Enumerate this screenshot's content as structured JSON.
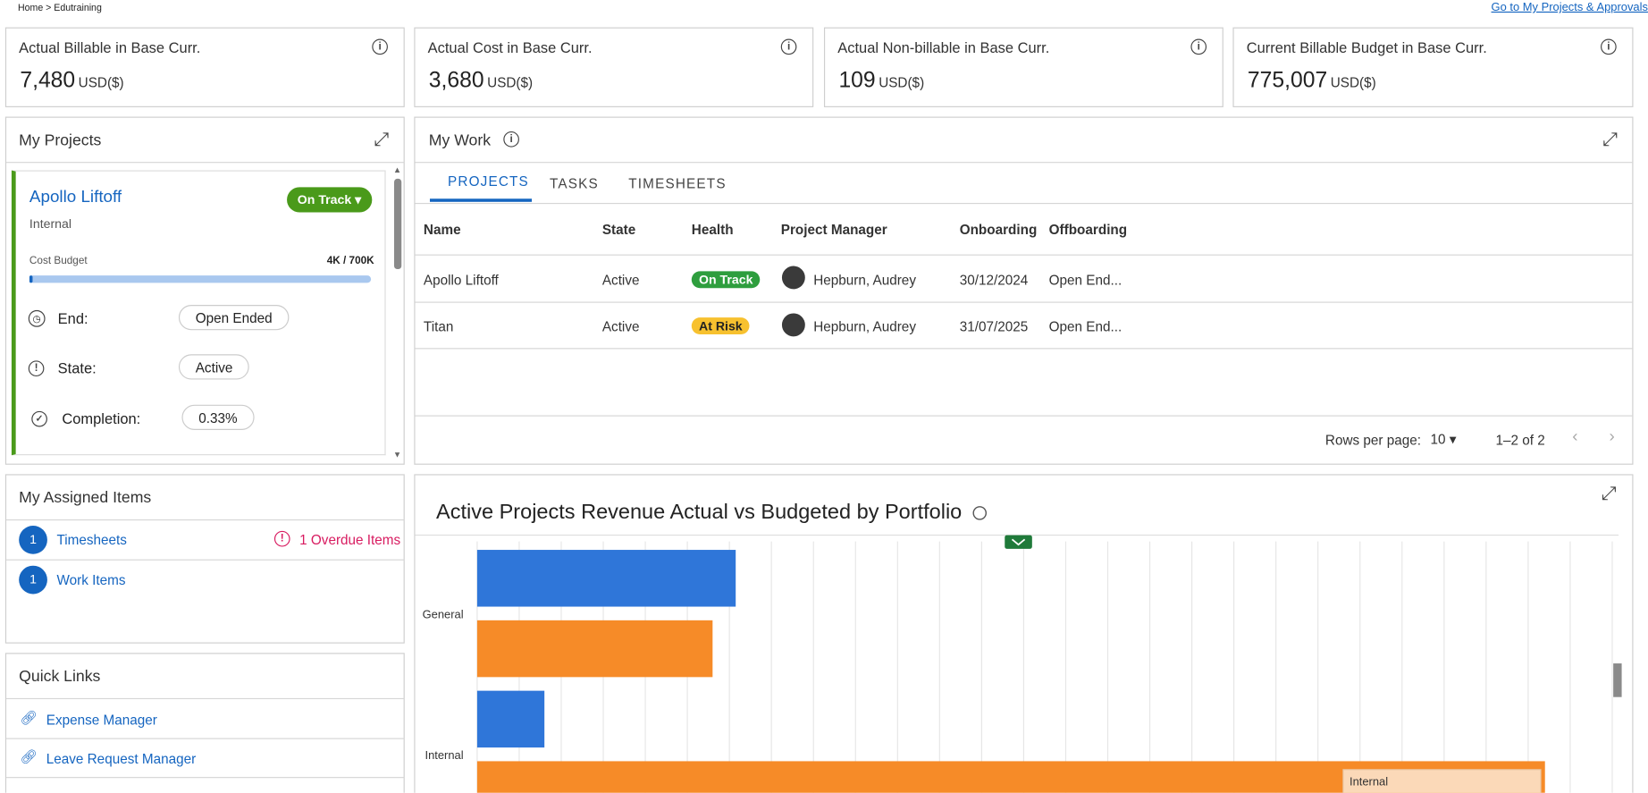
{
  "breadcrumb": "Home >  Edutraining",
  "header_link": "Go to My Projects & Approvals",
  "kpis": [
    {
      "title": "Actual Billable in Base Curr.",
      "value": "7,480",
      "unit": "USD($)"
    },
    {
      "title": "Actual Cost in Base Curr.",
      "value": "3,680",
      "unit": "USD($)"
    },
    {
      "title": "Actual Non-billable in Base Curr.",
      "value": "109",
      "unit": "USD($)"
    },
    {
      "title": "Current Billable Budget in Base Curr.",
      "value": "775,007",
      "unit": "USD($)"
    }
  ],
  "my_projects": {
    "title": "My Projects",
    "card": {
      "name": "Apollo Liftoff",
      "status": "On Track",
      "type": "Internal",
      "budget_label": "Cost Budget",
      "budget_value": "4K / 700K",
      "end_label": "End:",
      "end_value": "Open Ended",
      "state_label": "State:",
      "state_value": "Active",
      "completion_label": "Completion:",
      "completion_value": "0.33%"
    }
  },
  "my_work": {
    "title": "My Work",
    "tabs": [
      "PROJECTS",
      "TASKS",
      "TIMESHEETS"
    ],
    "columns": [
      "Name",
      "State",
      "Health",
      "Project Manager",
      "Onboarding",
      "Offboarding"
    ],
    "rows": [
      [
        "Apollo Liftoff",
        "Active",
        "On Track",
        "Hepburn, Audrey",
        "30/12/2024",
        "Open End..."
      ],
      [
        "Titan",
        "Active",
        "At Risk",
        "Hepburn, Audrey",
        "31/07/2025",
        "Open End..."
      ]
    ],
    "rows_per_page_label": "Rows per page:",
    "rows_per_page": "10",
    "range": "1–2 of 2"
  },
  "assigned": {
    "title": "My Assigned Items",
    "items": [
      {
        "count": "1",
        "label": "Timesheets",
        "note": "1 Overdue Items"
      },
      {
        "count": "1",
        "label": "Work Items"
      }
    ]
  },
  "quick_links": {
    "title": "Quick Links",
    "links": [
      "Expense Manager",
      "Leave Request Manager"
    ]
  },
  "chart_data": {
    "type": "bar",
    "orientation": "horizontal",
    "title": "Active Projects Revenue Actual vs Budgeted by Portfolio",
    "categories": [
      "General",
      "Internal"
    ],
    "series": [
      {
        "color": "#2f76d9",
        "values": [
          6.15,
          1.6
        ]
      },
      {
        "color": "#f68b28",
        "values": [
          5.6,
          25.4
        ]
      }
    ],
    "xlim": [
      0,
      27
    ],
    "annotation": "Internal"
  }
}
